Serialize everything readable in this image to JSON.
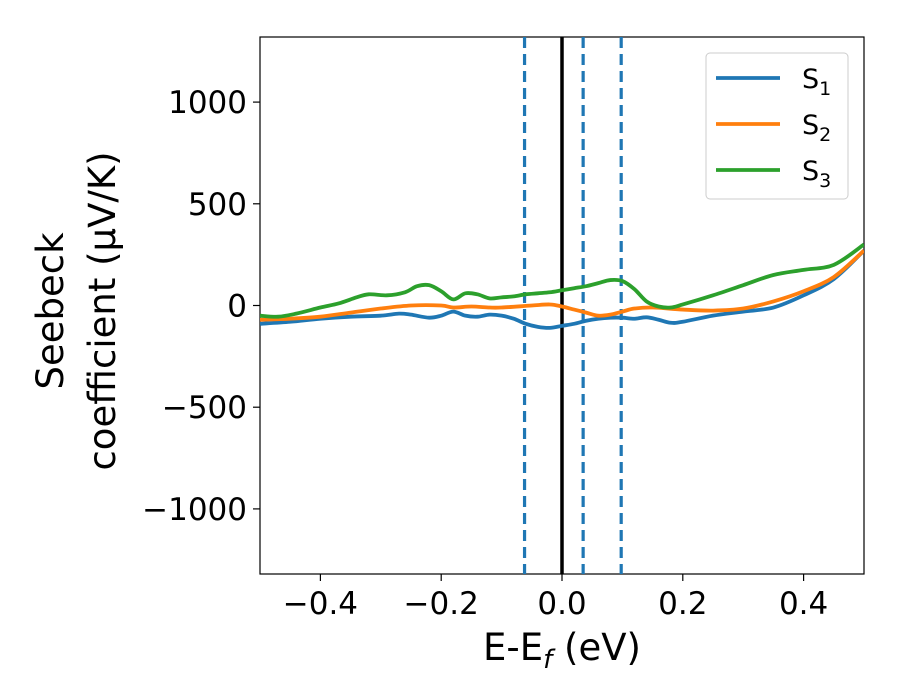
{
  "chart_data": {
    "type": "line",
    "title": "",
    "xlabel": "E-E",
    "xlabel_sub": "f",
    "xlabel_unit": " (eV)",
    "ylabel_line1": "Seebeck",
    "ylabel_line2": "coefficient  (μV/K)",
    "xlim": [
      -0.5,
      0.5
    ],
    "ylim": [
      -1320,
      1320
    ],
    "xticks": [
      -0.4,
      -0.2,
      0.0,
      0.2,
      0.4
    ],
    "xtick_labels": [
      "−0.4",
      "−0.2",
      "0.0",
      "0.2",
      "0.4"
    ],
    "yticks": [
      1000,
      500,
      0,
      -500,
      -1000
    ],
    "ytick_labels": [
      "1000",
      "500",
      "0",
      "−500",
      "−1000"
    ],
    "grid": false,
    "legend_position": "top-right",
    "vlines": [
      {
        "x": 0.0,
        "style": "solid",
        "color": "#000000"
      },
      {
        "x": -0.062,
        "style": "dashed",
        "color": "#1f77b4"
      },
      {
        "x": 0.035,
        "style": "dashed",
        "color": "#1f77b4"
      },
      {
        "x": 0.098,
        "style": "dashed",
        "color": "#1f77b4"
      }
    ],
    "series": [
      {
        "name": "S",
        "sub": "1",
        "color": "#1f77b4",
        "x": [
          -0.5,
          -0.45,
          -0.4,
          -0.35,
          -0.3,
          -0.27,
          -0.25,
          -0.22,
          -0.2,
          -0.18,
          -0.16,
          -0.14,
          -0.12,
          -0.1,
          -0.08,
          -0.06,
          -0.04,
          -0.02,
          0.0,
          0.02,
          0.04,
          0.06,
          0.08,
          0.1,
          0.12,
          0.14,
          0.16,
          0.18,
          0.2,
          0.25,
          0.3,
          0.35,
          0.4,
          0.45,
          0.5
        ],
        "values": [
          -90,
          -80,
          -65,
          -55,
          -50,
          -40,
          -45,
          -60,
          -50,
          -30,
          -50,
          -55,
          -45,
          -50,
          -65,
          -90,
          -105,
          -110,
          -100,
          -90,
          -75,
          -65,
          -60,
          -60,
          -65,
          -58,
          -70,
          -85,
          -80,
          -50,
          -30,
          -10,
          50,
          130,
          270
        ]
      },
      {
        "name": "S",
        "sub": "2",
        "color": "#ff7f0e",
        "x": [
          -0.5,
          -0.45,
          -0.4,
          -0.35,
          -0.3,
          -0.25,
          -0.2,
          -0.18,
          -0.15,
          -0.12,
          -0.1,
          -0.05,
          -0.02,
          0.0,
          0.02,
          0.04,
          0.06,
          0.08,
          0.1,
          0.12,
          0.15,
          0.2,
          0.25,
          0.3,
          0.35,
          0.4,
          0.45,
          0.5
        ],
        "values": [
          -70,
          -65,
          -55,
          -35,
          -15,
          0,
          0,
          -10,
          -5,
          -10,
          -10,
          0,
          5,
          -5,
          -20,
          -35,
          -50,
          -45,
          -30,
          -15,
          -10,
          -20,
          -25,
          -15,
          20,
          70,
          140,
          270
        ]
      },
      {
        "name": "S",
        "sub": "3",
        "color": "#2ca02c",
        "x": [
          -0.5,
          -0.47,
          -0.44,
          -0.4,
          -0.37,
          -0.34,
          -0.32,
          -0.29,
          -0.26,
          -0.24,
          -0.22,
          -0.2,
          -0.18,
          -0.16,
          -0.14,
          -0.12,
          -0.1,
          -0.08,
          -0.06,
          -0.04,
          -0.02,
          0.0,
          0.02,
          0.04,
          0.06,
          0.08,
          0.1,
          0.12,
          0.14,
          0.16,
          0.18,
          0.2,
          0.25,
          0.3,
          0.35,
          0.4,
          0.45,
          0.5
        ],
        "values": [
          -50,
          -55,
          -40,
          -10,
          10,
          40,
          55,
          50,
          65,
          95,
          100,
          70,
          30,
          60,
          55,
          35,
          40,
          45,
          55,
          60,
          65,
          75,
          85,
          95,
          110,
          125,
          120,
          80,
          20,
          -5,
          -10,
          5,
          50,
          100,
          150,
          175,
          200,
          300
        ]
      }
    ]
  }
}
